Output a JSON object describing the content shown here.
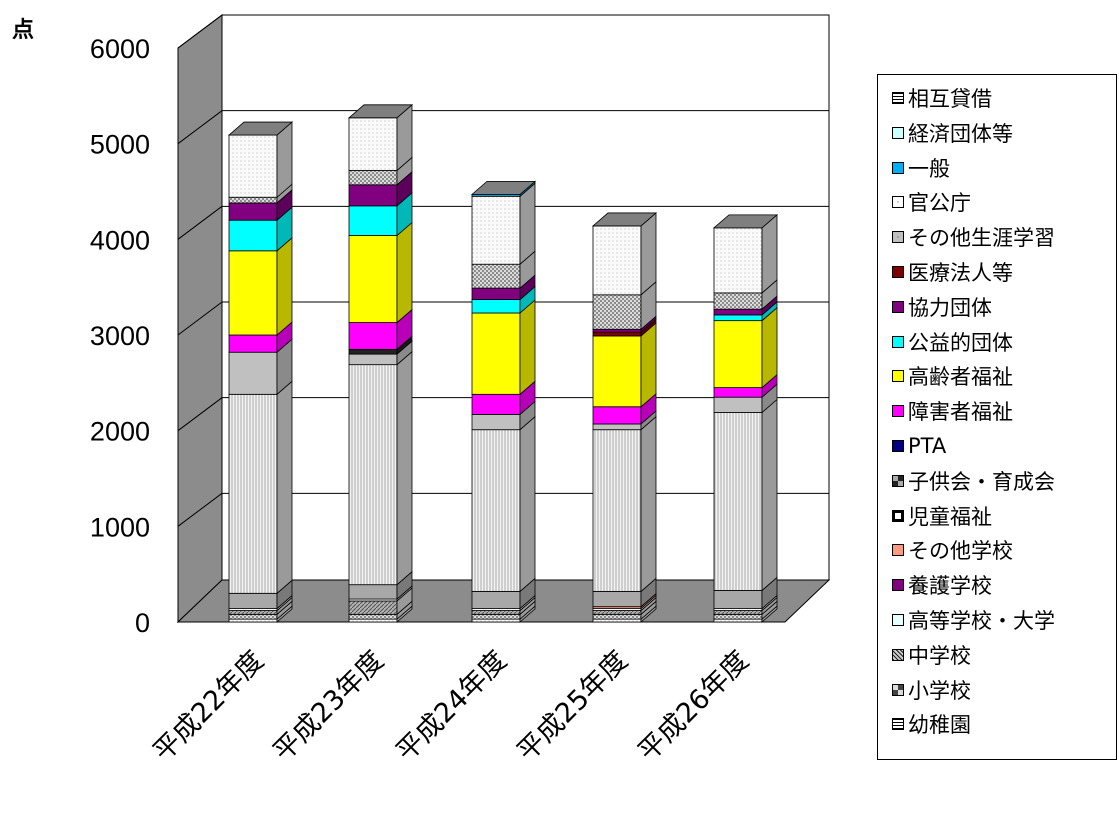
{
  "chart_data": {
    "type": "bar",
    "stacked": true,
    "three_d": true,
    "unit_label": "点",
    "categories": [
      "平成22年度",
      "平成23年度",
      "平成24年度",
      "平成25年度",
      "平成26年度"
    ],
    "ylim": [
      0,
      6000
    ],
    "yticks": [
      "0",
      "1000",
      "2000",
      "3000",
      "4000",
      "5000",
      "6000"
    ],
    "grid": true,
    "legend_position": "right",
    "series": [
      {
        "name": "幼稚園",
        "color": "#d9d9d9",
        "values": [
          30,
          30,
          30,
          30,
          30
        ]
      },
      {
        "name": "小学校",
        "color": "#c8c8c8",
        "values": [
          50,
          50,
          50,
          50,
          50
        ]
      },
      {
        "name": "中学校",
        "color": "#b4b4b4",
        "values": [
          40,
          140,
          40,
          40,
          40
        ]
      },
      {
        "name": "高等学校・大学",
        "color": "#f0f0f0",
        "values": [
          20,
          20,
          20,
          20,
          20
        ]
      },
      {
        "name": "養護学校",
        "color": "#800080",
        "values": [
          0,
          0,
          0,
          0,
          0
        ]
      },
      {
        "name": "その他学校",
        "color": "#ff9980",
        "values": [
          0,
          0,
          0,
          20,
          0
        ]
      },
      {
        "name": "児童福祉",
        "color": "#a8a8a8",
        "values": [
          160,
          150,
          180,
          160,
          190
        ]
      },
      {
        "name": "子供会・育成会",
        "color": "#444444",
        "values": [
          0,
          0,
          0,
          0,
          0
        ]
      },
      {
        "name": "PTA",
        "color": "#000080",
        "values": [
          0,
          0,
          0,
          0,
          0
        ]
      },
      {
        "name": "障害者福祉",
        "color": "#e0e0e0",
        "values": [
          2080,
          2300,
          1690,
          1690,
          1860
        ]
      },
      {
        "name": "高齢者福祉",
        "color": "#c0c0c0",
        "values": [
          440,
          110,
          160,
          60,
          160
        ]
      },
      {
        "name": "公益的団体",
        "color": "#222222",
        "values": [
          0,
          50,
          0,
          0,
          0
        ]
      },
      {
        "name": "医療法人等",
        "color": "#ff00ff",
        "values": [
          180,
          280,
          210,
          180,
          100
        ]
      },
      {
        "name": "協力団体",
        "color": "#ffff00",
        "values": [
          880,
          910,
          850,
          740,
          700
        ]
      },
      {
        "name": "その他生涯学習",
        "color": "#00ffff",
        "values": [
          320,
          310,
          140,
          0,
          60
        ]
      },
      {
        "name": "官公庁",
        "color": "#800000",
        "values": [
          0,
          0,
          0,
          40,
          0
        ]
      },
      {
        "name": "一般",
        "color": "#800080",
        "values": [
          180,
          220,
          120,
          30,
          60
        ]
      },
      {
        "name": "経済団体等",
        "color": "#c0c0c0",
        "values": [
          60,
          150,
          250,
          360,
          170
        ]
      },
      {
        "name": "相互貸借",
        "color": "#f7f7f7",
        "values": [
          650,
          550,
          710,
          720,
          680
        ]
      },
      {
        "name": "",
        "color": "#00b0f0",
        "values": [
          0,
          0,
          20,
          0,
          0
        ]
      }
    ],
    "legend": [
      {
        "name": "相互貸借",
        "swatch": "#ffffff",
        "pattern": "hline"
      },
      {
        "name": "経済団体等",
        "swatch": "#ccffff",
        "pattern": "none"
      },
      {
        "name": "一般",
        "swatch": "#00b0f0",
        "pattern": "none"
      },
      {
        "name": "官公庁",
        "swatch": "#ffffff",
        "pattern": "dot"
      },
      {
        "name": "その他生涯学習",
        "swatch": "#c0c0c0",
        "pattern": "dot"
      },
      {
        "name": "医療法人等",
        "swatch": "#800000",
        "pattern": "none"
      },
      {
        "name": "協力団体",
        "swatch": "#800080",
        "pattern": "none"
      },
      {
        "name": "公益的団体",
        "swatch": "#00ffff",
        "pattern": "none"
      },
      {
        "name": "高齢者福祉",
        "swatch": "#ffff00",
        "pattern": "none"
      },
      {
        "name": "障害者福祉",
        "swatch": "#ff00ff",
        "pattern": "none"
      },
      {
        "name": "PTA",
        "swatch": "#000080",
        "pattern": "none"
      },
      {
        "name": "子供会・育成会",
        "swatch": "#808080",
        "pattern": "dot"
      },
      {
        "name": "児童福祉",
        "swatch": "#ffffff",
        "pattern": "thick"
      },
      {
        "name": "その他学校",
        "swatch": "#ff9980",
        "pattern": "none"
      },
      {
        "name": "養護学校",
        "swatch": "#800080",
        "pattern": "none"
      },
      {
        "name": "高等学校・大学",
        "swatch": "#e6ffff",
        "pattern": "none"
      },
      {
        "name": "中学校",
        "swatch": "#808080",
        "pattern": "diag"
      },
      {
        "name": "小学校",
        "swatch": "#c0c0c0",
        "pattern": "check"
      },
      {
        "name": "幼稚園",
        "swatch": "#ffffff",
        "pattern": "hline"
      }
    ]
  }
}
